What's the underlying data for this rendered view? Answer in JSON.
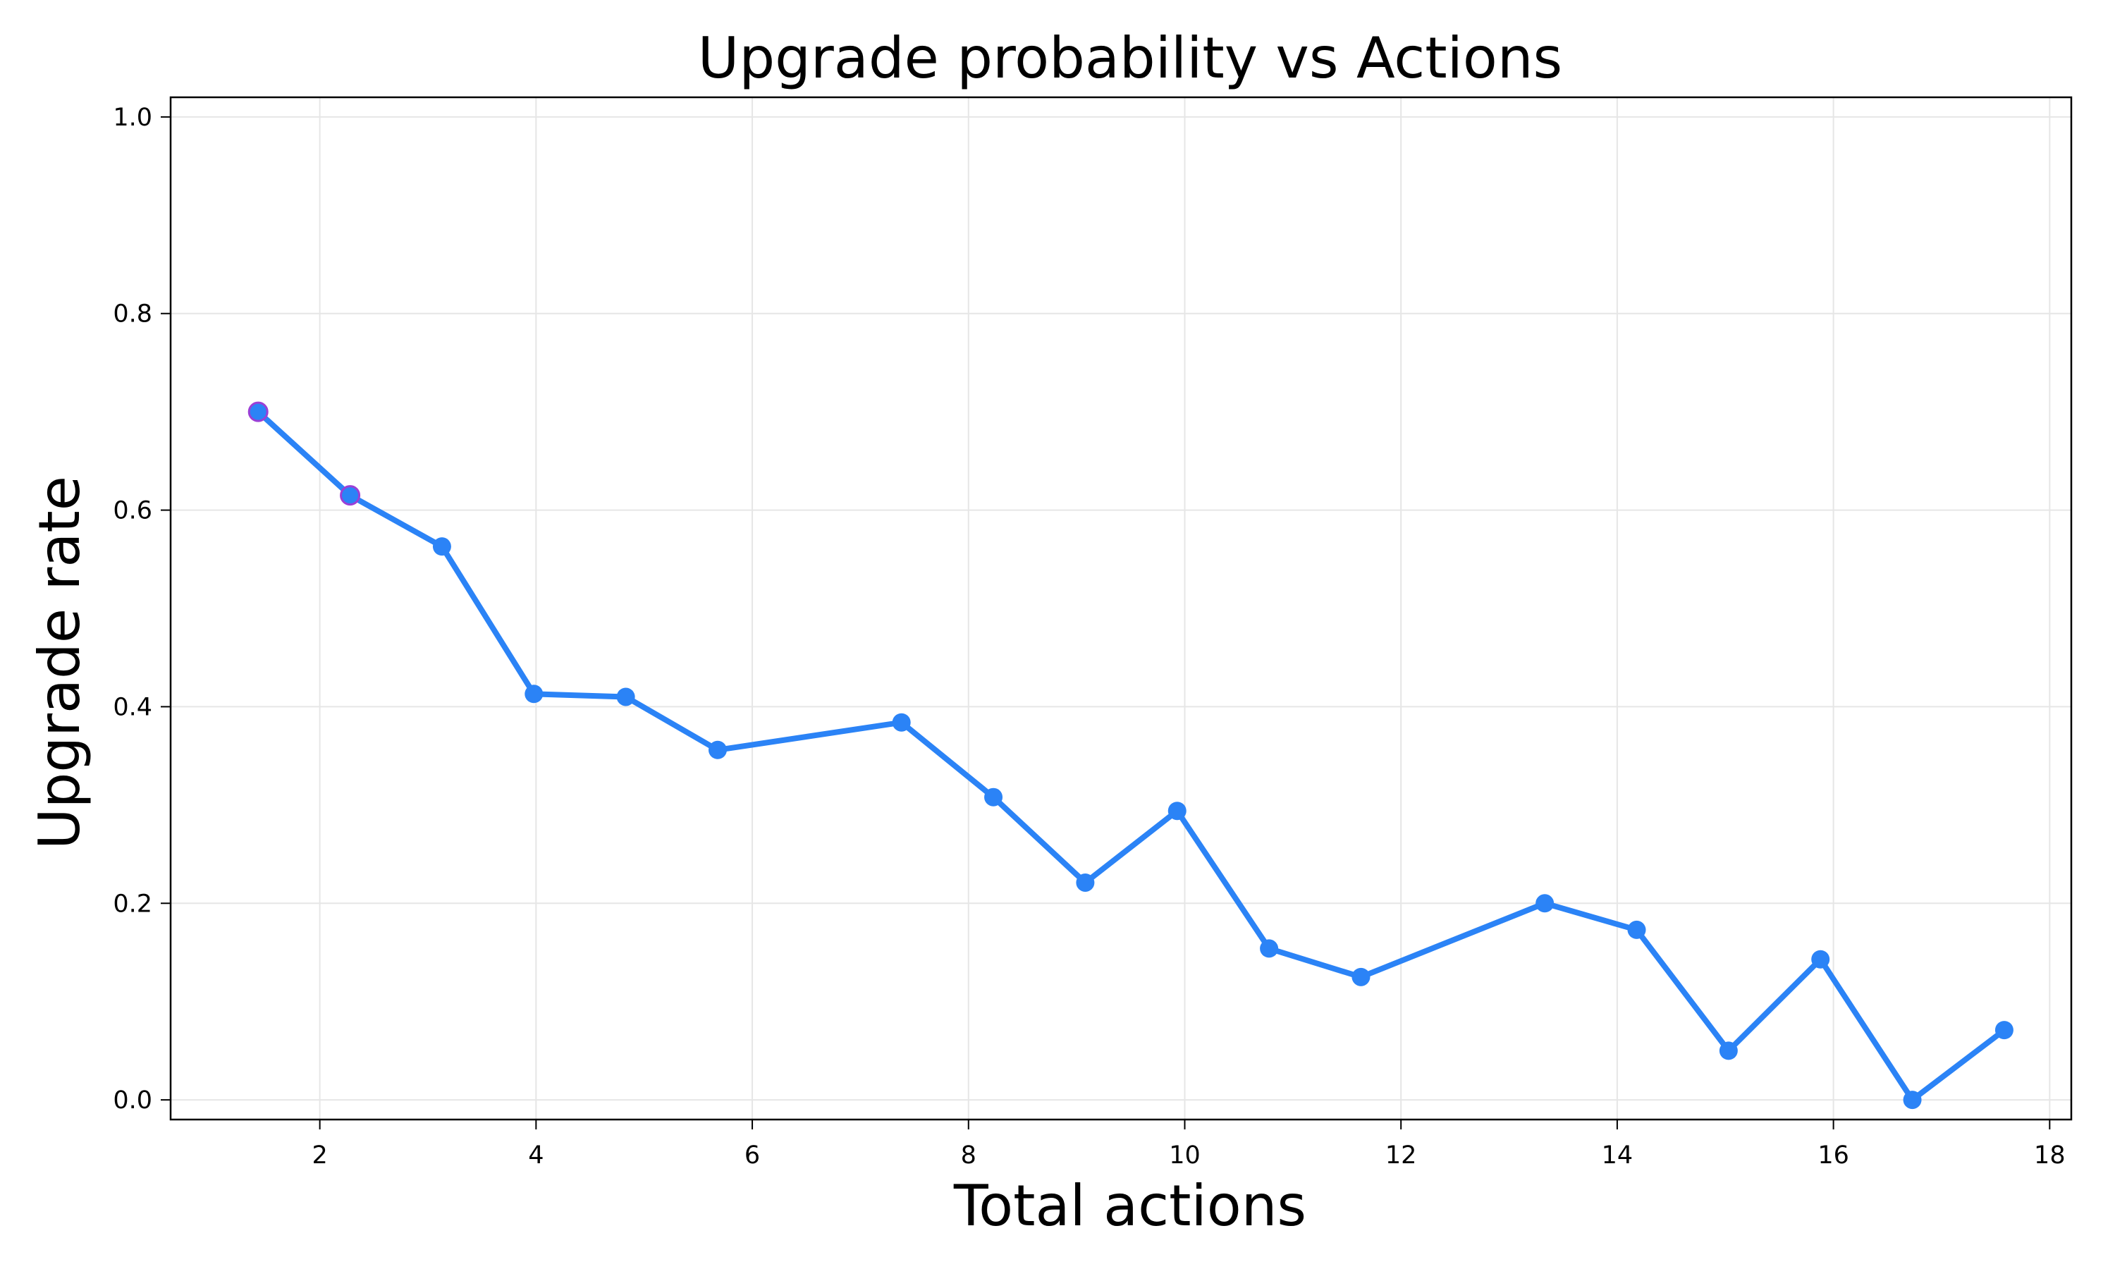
{
  "chart_data": {
    "type": "line",
    "title": "Upgrade probability vs Actions",
    "xlabel": "Total actions",
    "ylabel": "Upgrade rate",
    "xlim": [
      0.62,
      18.2
    ],
    "ylim": [
      -0.02,
      1.02
    ],
    "xticks": [
      2,
      4,
      6,
      8,
      10,
      12,
      14,
      16,
      18
    ],
    "xtick_labels": [
      "2",
      "4",
      "6",
      "8",
      "10",
      "12",
      "14",
      "16",
      "18"
    ],
    "yticks": [
      0.0,
      0.2,
      0.4,
      0.6,
      0.8,
      1.0
    ],
    "ytick_labels": [
      "0.0",
      "0.2",
      "0.4",
      "0.6",
      "0.8",
      "1.0"
    ],
    "grid": true,
    "legend": "none",
    "series": [
      {
        "color": "#2b83f6",
        "marker": "circle",
        "x": [
          1.43,
          2.28,
          3.13,
          3.98,
          4.83,
          5.68,
          7.38,
          8.23,
          9.08,
          9.93,
          10.78,
          11.63,
          13.33,
          14.18,
          15.03,
          15.88,
          16.73,
          17.58
        ],
        "y": [
          0.7,
          0.615,
          0.563,
          0.413,
          0.41,
          0.356,
          0.384,
          0.308,
          0.221,
          0.294,
          0.154,
          0.125,
          0.2,
          0.173,
          0.05,
          0.143,
          0.0,
          0.071
        ]
      }
    ],
    "first_point_edge_color": "#9b3fd6"
  }
}
